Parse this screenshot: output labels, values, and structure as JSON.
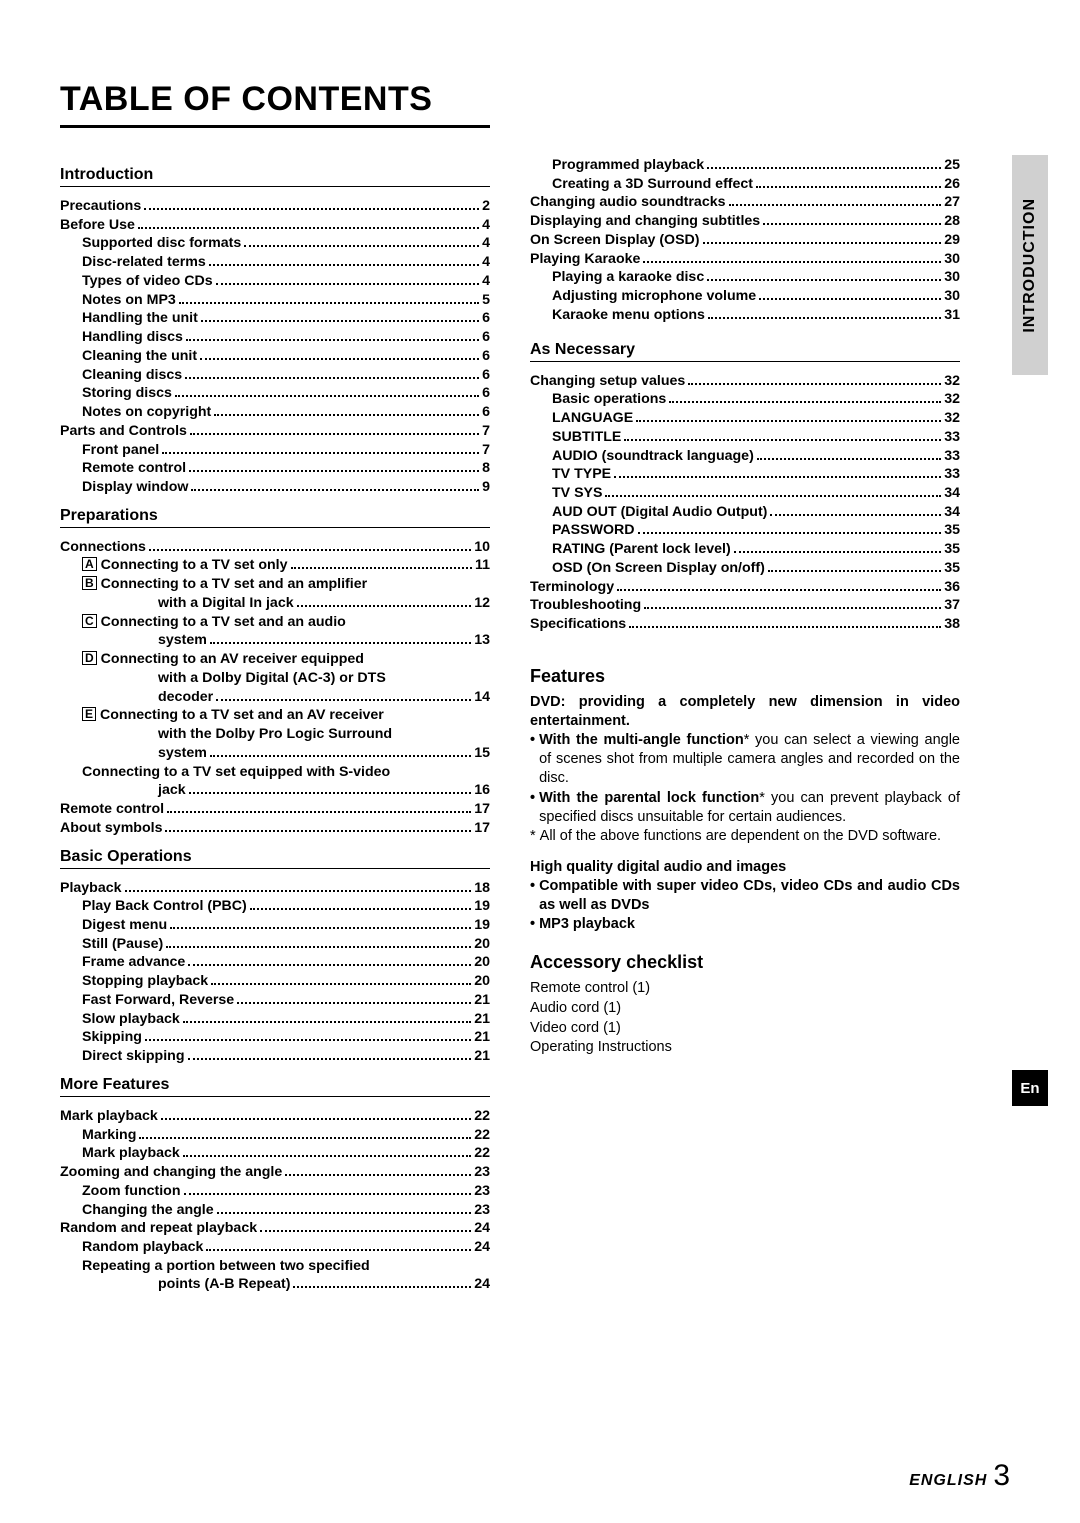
{
  "title": "TABLE OF CONTENTS",
  "side_tab": "INTRODUCTION",
  "side_en": "En",
  "footer_eng": "ENGLISH",
  "footer_num": "3",
  "sections_left": [
    {
      "heading": "Introduction",
      "items": [
        {
          "label": "Precautions",
          "page": "2",
          "indent": 0
        },
        {
          "label": "Before Use",
          "page": "4",
          "indent": 0
        },
        {
          "label": "Supported disc formats",
          "page": "4",
          "indent": 1
        },
        {
          "label": "Disc-related terms",
          "page": "4",
          "indent": 1
        },
        {
          "label": "Types of video CDs",
          "page": "4",
          "indent": 1
        },
        {
          "label": "Notes on MP3",
          "page": "5",
          "indent": 1
        },
        {
          "label": "Handling the unit",
          "page": "6",
          "indent": 1
        },
        {
          "label": "Handling discs",
          "page": "6",
          "indent": 1
        },
        {
          "label": "Cleaning the unit",
          "page": "6",
          "indent": 1
        },
        {
          "label": "Cleaning discs",
          "page": "6",
          "indent": 1
        },
        {
          "label": "Storing discs",
          "page": "6",
          "indent": 1
        },
        {
          "label": "Notes on copyright",
          "page": "6",
          "indent": 1
        },
        {
          "label": "Parts and Controls",
          "page": "7",
          "indent": 0
        },
        {
          "label": "Front panel",
          "page": "7",
          "indent": 1
        },
        {
          "label": "Remote control",
          "page": "8",
          "indent": 1
        },
        {
          "label": "Display window",
          "page": "9",
          "indent": 1
        }
      ]
    },
    {
      "heading": "Preparations",
      "items": [
        {
          "label": "Connections",
          "page": "10",
          "indent": 0
        },
        {
          "box": "A",
          "label": "Connecting to a TV set only",
          "page": "11",
          "indent": 1
        },
        {
          "box": "B",
          "label": "Connecting to a TV set and an amplifier",
          "indent": 1,
          "nopage": true
        },
        {
          "label": "with a Digital In jack",
          "page": "12",
          "indent": 3
        },
        {
          "box": "C",
          "label": "Connecting to a TV set and an audio",
          "indent": 1,
          "nopage": true
        },
        {
          "label": "system",
          "page": "13",
          "indent": 3
        },
        {
          "box": "D",
          "label": "Connecting to an AV receiver equipped",
          "indent": 1,
          "nopage": true
        },
        {
          "label": "with a Dolby Digital (AC-3) or DTS",
          "indent": 3,
          "nopage": true
        },
        {
          "label": "decoder",
          "page": "14",
          "indent": 3
        },
        {
          "box": "E",
          "label": "Connecting to a TV set and an AV receiver",
          "indent": 1,
          "nopage": true
        },
        {
          "label": "with the Dolby Pro Logic Surround",
          "indent": 3,
          "nopage": true
        },
        {
          "label": "system",
          "page": "15",
          "indent": 3
        },
        {
          "label": "Connecting to a TV set equipped with S-video",
          "indent": 1,
          "nopage": true
        },
        {
          "label": "jack",
          "page": "16",
          "indent": 3
        },
        {
          "label": "Remote control",
          "page": "17",
          "indent": 0
        },
        {
          "label": "About symbols",
          "page": "17",
          "indent": 0
        }
      ]
    },
    {
      "heading": "Basic Operations",
      "items": [
        {
          "label": "Playback",
          "page": "18",
          "indent": 0
        },
        {
          "label": "Play Back Control (PBC)",
          "page": "19",
          "indent": 1
        },
        {
          "label": "Digest menu",
          "page": "19",
          "indent": 1
        },
        {
          "label": "Still (Pause)",
          "page": "20",
          "indent": 1
        },
        {
          "label": "Frame advance",
          "page": "20",
          "indent": 1
        },
        {
          "label": "Stopping playback",
          "page": "20",
          "indent": 1
        },
        {
          "label": "Fast Forward, Reverse",
          "page": "21",
          "indent": 1
        },
        {
          "label": "Slow playback",
          "page": "21",
          "indent": 1
        },
        {
          "label": "Skipping",
          "page": "21",
          "indent": 1
        },
        {
          "label": "Direct skipping",
          "page": "21",
          "indent": 1
        }
      ]
    },
    {
      "heading": "More Features",
      "items": [
        {
          "label": "Mark playback",
          "page": "22",
          "indent": 0
        },
        {
          "label": "Marking",
          "page": "22",
          "indent": 1
        },
        {
          "label": "Mark playback",
          "page": "22",
          "indent": 1
        },
        {
          "label": "Zooming and changing the angle",
          "page": "23",
          "indent": 0
        },
        {
          "label": "Zoom function",
          "page": "23",
          "indent": 1
        },
        {
          "label": "Changing the angle",
          "page": "23",
          "indent": 1
        },
        {
          "label": "Random and repeat playback",
          "page": "24",
          "indent": 0
        },
        {
          "label": "Random playback",
          "page": "24",
          "indent": 1
        },
        {
          "label": "Repeating a portion between two specified",
          "indent": 1,
          "nopage": true
        },
        {
          "label": "points (A-B Repeat)",
          "page": "24",
          "indent": 3
        }
      ]
    }
  ],
  "sections_right_top": [
    {
      "label": "Programmed playback",
      "page": "25",
      "indent": 1
    },
    {
      "label": "Creating a 3D Surround effect",
      "page": "26",
      "indent": 1
    },
    {
      "label": "Changing audio soundtracks",
      "page": "27",
      "indent": 0
    },
    {
      "label": "Displaying and changing subtitles",
      "page": "28",
      "indent": 0
    },
    {
      "label": "On Screen Display (OSD)",
      "page": "29",
      "indent": 0
    },
    {
      "label": "Playing Karaoke",
      "page": "30",
      "indent": 0
    },
    {
      "label": "Playing a karaoke disc",
      "page": "30",
      "indent": 1
    },
    {
      "label": "Adjusting microphone volume",
      "page": "30",
      "indent": 1
    },
    {
      "label": "Karaoke menu options",
      "page": "31",
      "indent": 1
    }
  ],
  "sections_right_nec": {
    "heading": "As Necessary",
    "items": [
      {
        "label": "Changing setup values",
        "page": "32",
        "indent": 0
      },
      {
        "label": "Basic operations",
        "page": "32",
        "indent": 1
      },
      {
        "label": "LANGUAGE",
        "page": "32",
        "indent": 1
      },
      {
        "label": "SUBTITLE",
        "page": "33",
        "indent": 1
      },
      {
        "label": "AUDIO (soundtrack language)",
        "page": "33",
        "indent": 1
      },
      {
        "label": "TV TYPE",
        "page": "33",
        "indent": 1
      },
      {
        "label": "TV SYS",
        "page": "34",
        "indent": 1
      },
      {
        "label": "AUD OUT (Digital Audio Output)",
        "page": "34",
        "indent": 1
      },
      {
        "label": "PASSWORD",
        "page": "35",
        "indent": 1
      },
      {
        "label": "RATING (Parent lock level)",
        "page": "35",
        "indent": 1
      },
      {
        "label": "OSD (On Screen Display on/off)",
        "page": "35",
        "indent": 1
      },
      {
        "label": "Terminology",
        "page": "36",
        "indent": 0
      },
      {
        "label": "Troubleshooting",
        "page": "37",
        "indent": 0
      },
      {
        "label": "Specifications",
        "page": "38",
        "indent": 0
      }
    ]
  },
  "features": {
    "heading": "Features",
    "lead": "DVD: providing a completely new dimension in video entertainment.",
    "bullets": [
      {
        "bold": "With the multi-angle function",
        "suffix": "* you can select a viewing angle of scenes shot from multiple camera angles and recorded on the disc."
      },
      {
        "bold": "With the parental lock function",
        "suffix": "* you can prevent playback of specified discs unsuitable for certain audiences."
      }
    ],
    "star": "All of the above functions are dependent on the DVD software.",
    "hq_head": "High quality digital audio and images",
    "hq_bullets": [
      {
        "text": "Compatible with super video CDs, video CDs and audio CDs as well as DVDs"
      },
      {
        "text": "MP3 playback"
      }
    ]
  },
  "accessory": {
    "heading": "Accessory checklist",
    "items": [
      "Remote control (1)",
      "Audio cord (1)",
      "Video cord (1)",
      "Operating Instructions"
    ]
  }
}
